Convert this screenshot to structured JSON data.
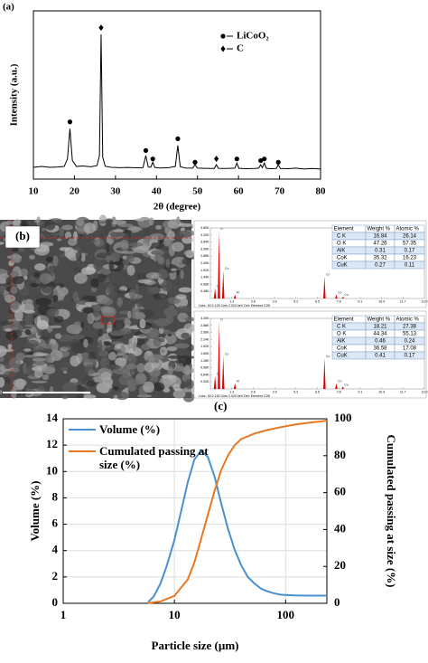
{
  "chart_data": [
    {
      "type": "line",
      "label": "(a)",
      "x_label": "2θ (degree)",
      "y_label": "Intensity (a.u.)",
      "xlim": [
        10,
        80
      ],
      "xticks": [
        10,
        20,
        30,
        40,
        50,
        60,
        70,
        80
      ],
      "ylim": [
        0,
        100
      ],
      "legend": "upper right",
      "series": [
        {
          "color": "#000000",
          "x": [
            10,
            12,
            14,
            16,
            17.5,
            18.3,
            18.9,
            19.5,
            20.5,
            22,
            24,
            25.5,
            26.1,
            26.5,
            26.9,
            27.5,
            29,
            31,
            33,
            35,
            36.7,
            37.4,
            38,
            38.6,
            39.1,
            39.6,
            41,
            43,
            44.6,
            45.2,
            45.8,
            47,
            48.8,
            49.4,
            50,
            52,
            54.1,
            54.6,
            55.1,
            57,
            59.1,
            59.6,
            60.1,
            62,
            64,
            64.9,
            65.4,
            65.8,
            66.3,
            66.8,
            68,
            69.2,
            69.7,
            70.2,
            72,
            74,
            76,
            78,
            80
          ],
          "values": [
            7,
            7.5,
            7,
            7.2,
            7.5,
            12,
            30,
            11,
            7.5,
            7.8,
            7.3,
            8,
            14,
            86,
            13,
            7.6,
            7,
            6.8,
            6.9,
            6.7,
            6.8,
            14,
            7.2,
            7,
            10,
            6.9,
            6.6,
            6.8,
            7.5,
            20,
            7.4,
            6.6,
            6.5,
            8.5,
            6.5,
            6.4,
            6.3,
            8.5,
            6.4,
            6.3,
            6.5,
            9.5,
            6.4,
            6.2,
            6.3,
            6.5,
            8.5,
            6.8,
            9.5,
            6.4,
            6.2,
            6.3,
            8.5,
            6.3,
            6.2,
            6.5,
            6,
            6.3,
            6
          ]
        }
      ],
      "markers": [
        {
          "name": "LiCoO₂",
          "symbol": "circle",
          "color": "#000000",
          "x": [
            18.9,
            37.4,
            39.1,
            45.2,
            49.4,
            59.6,
            65.4,
            66.3,
            69.7
          ],
          "values": [
            34,
            17,
            12,
            24,
            10,
            12,
            11,
            12,
            10
          ]
        },
        {
          "name": "C",
          "symbol": "diamond",
          "color": "#000000",
          "x": [
            26.5,
            54.6
          ],
          "values": [
            90,
            12
          ]
        }
      ]
    },
    {
      "type": "spectrum",
      "label": "(b)",
      "xlim": [
        0,
        13
      ],
      "ylim": [
        0,
        4800
      ],
      "color": "#e00000",
      "xticks": [
        1.3,
        2.6,
        3.9,
        5.2,
        6.5,
        7.8,
        9.1,
        10.4,
        11.7,
        {
          "value": 13,
          "label": "13.0"
        }
      ],
      "yticks": [
        {
          "value": 480,
          "label": "0.48K"
        },
        {
          "value": 960,
          "label": "0.96K"
        },
        {
          "value": 1440,
          "label": "1.44K"
        },
        {
          "value": 1920,
          "label": "1.92K"
        },
        {
          "value": 2400,
          "label": "2.40K"
        },
        {
          "value": 2880,
          "label": "2.88K"
        },
        {
          "value": 3360,
          "label": "3.36K"
        },
        {
          "value": 3840,
          "label": "3.84K"
        },
        {
          "value": 4320,
          "label": "4.32K"
        },
        {
          "value": 4800,
          "label": "4.80K"
        }
      ],
      "peaks": {
        "labels": [
          "C",
          "O",
          "Co",
          "Al",
          "Co",
          "Co",
          "Cu"
        ],
        "x": [
          0.28,
          0.52,
          0.78,
          1.49,
          6.93,
          7.65,
          8.05
        ],
        "values": [
          700,
          4600,
          1900,
          280,
          1500,
          280,
          120
        ]
      },
      "footer": "Lsec: 30.0    125 Cnts    2.020 keV    Det: Element C2B",
      "table": {
        "columns": [
          "Element",
          "Weight %",
          "Atomic %"
        ],
        "rows": [
          [
            "C K",
            16.84,
            26.14
          ],
          [
            "O K",
            47.26,
            57.35
          ],
          [
            "AlK",
            0.31,
            0.17
          ],
          [
            "CoK",
            35.32,
            16.23
          ],
          [
            "CuK",
            0.27,
            0.11
          ]
        ]
      }
    },
    {
      "type": "spectrum",
      "xlim": [
        0,
        13
      ],
      "ylim": [
        0,
        3200
      ],
      "color": "#e00000",
      "xticks": [
        1.3,
        2.6,
        3.9,
        5.2,
        6.5,
        7.8,
        9.1,
        10.4,
        11.7,
        {
          "value": 13,
          "label": "13.0"
        }
      ],
      "yticks": [
        {
          "value": 320,
          "label": "0.32K"
        },
        {
          "value": 640,
          "label": "0.64K"
        },
        {
          "value": 960,
          "label": "0.96K"
        },
        {
          "value": 1280,
          "label": "1.28K"
        },
        {
          "value": 1600,
          "label": "1.60K"
        },
        {
          "value": 1920,
          "label": "1.92K"
        },
        {
          "value": 2240,
          "label": "2.24K"
        },
        {
          "value": 2560,
          "label": "2.56K"
        },
        {
          "value": 2880,
          "label": "2.88K"
        },
        {
          "value": 3200,
          "label": "3.20K"
        }
      ],
      "peaks": {
        "labels": [
          "C",
          "O",
          "Co",
          "Al",
          "Co",
          "Co",
          "Cu"
        ],
        "x": [
          0.28,
          0.52,
          0.78,
          1.49,
          6.93,
          7.65,
          8.05
        ],
        "values": [
          600,
          3050,
          1500,
          260,
          1400,
          260,
          110
        ]
      },
      "footer": "Lsec: 30.0    150 Cnts    2.020 keV    Det: Element C2B",
      "table": {
        "columns": [
          "Element",
          "Weight %",
          "Atomic %"
        ],
        "rows": [
          [
            "C K",
            18.21,
            27.38
          ],
          [
            "O K",
            44.34,
            55.13
          ],
          [
            "AlK",
            0.46,
            0.24
          ],
          [
            "CoK",
            36.58,
            17.08
          ],
          [
            "CuK",
            0.41,
            0.17
          ]
        ]
      }
    },
    {
      "type": "line",
      "label": "(c)",
      "x_label": "Particle size (µm)",
      "y_label": "Volume (%)",
      "y2_label": "Cumulated passing at size (%)",
      "xlog": true,
      "grid": true,
      "legend": "upper left",
      "xlim": [
        1,
        235
      ],
      "xticks": [
        1,
        10,
        100
      ],
      "ylim": [
        0,
        14
      ],
      "yticks": [
        0,
        2,
        4,
        6,
        8,
        10,
        12,
        14
      ],
      "y2lim": [
        0,
        100
      ],
      "y2ticks": [
        0,
        20,
        40,
        60,
        80,
        100
      ],
      "series": [
        {
          "name": "Volume (%)",
          "color": "#4a90d0",
          "x": [
            5.8,
            6.5,
            7.5,
            8.5,
            10,
            11.5,
            13.2,
            15.1,
            17.4,
            20,
            23,
            26.3,
            30.2,
            34.7,
            39.8,
            45.7,
            52.5,
            60.3,
            69.2,
            79.4,
            91.2,
            120,
            158,
            209,
            235
          ],
          "values": [
            0.1,
            0.5,
            1.5,
            2.8,
            4.8,
            7,
            9.2,
            10.9,
            11.6,
            11.1,
            9.6,
            7.6,
            5.7,
            4.1,
            2.9,
            2,
            1.5,
            1.1,
            0.9,
            0.75,
            0.65,
            0.6,
            0.58,
            0.58,
            0.58
          ]
        },
        {
          "name": "Cumulated passing at size (%)",
          "color": "#e87722",
          "axis": "y2",
          "x": [
            5.8,
            7.5,
            10,
            13.2,
            15.1,
            17.4,
            20,
            23,
            26.3,
            30.2,
            34.7,
            39.8,
            52.5,
            69.2,
            91.2,
            120,
            158,
            209,
            235
          ],
          "values": [
            0.1,
            1,
            4,
            13,
            22,
            35,
            48,
            61,
            72,
            80,
            85.5,
            89,
            92,
            94,
            95.5,
            96.8,
            97.8,
            98.6,
            99
          ]
        }
      ]
    }
  ]
}
